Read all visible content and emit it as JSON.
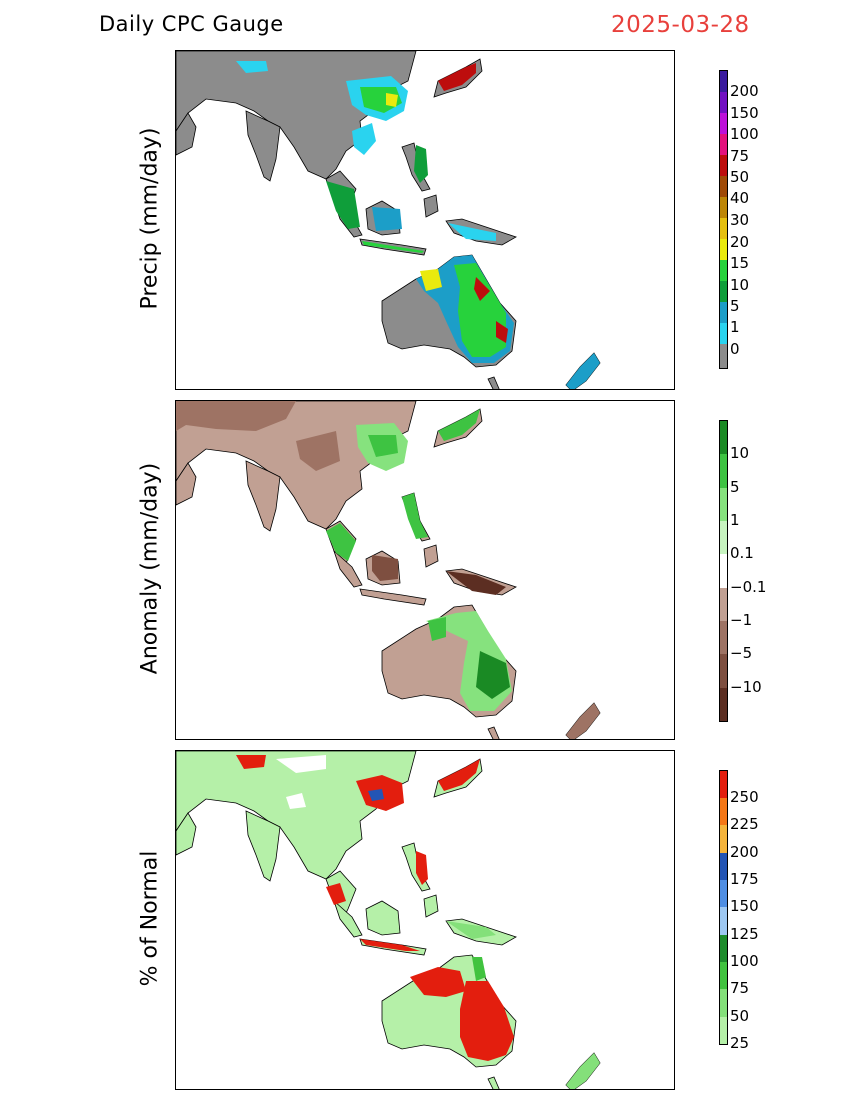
{
  "header": {
    "title": "Daily CPC Gauge",
    "date": "2025-03-28"
  },
  "panels": [
    {
      "id": "precip",
      "ylabel": "Precip (mm/day)",
      "colorbar": {
        "colors": [
          "#8c8c8c",
          "#2ad3ef",
          "#1c9ec8",
          "#0f9e3a",
          "#27d23c",
          "#eaea0e",
          "#e5bf0f",
          "#bd8606",
          "#a04a06",
          "#bd0d0d",
          "#e3117d",
          "#bd11d9",
          "#7210c2",
          "#3a1a9e"
        ],
        "labels": [
          "0",
          "1",
          "5",
          "10",
          "15",
          "20",
          "30",
          "40",
          "50",
          "75",
          "100",
          "150",
          "200"
        ]
      }
    },
    {
      "id": "anomaly",
      "ylabel": "Anomaly (mm/day)",
      "colorbar": {
        "colors": [
          "#5c2e22",
          "#7e4f40",
          "#9e7364",
          "#c1a093",
          "#ffffff",
          "#c7f4c0",
          "#86e27e",
          "#3ec342",
          "#1a8a24"
        ],
        "labels": [
          "−10",
          "−5",
          "−1",
          "−0.1",
          "0.1",
          "1",
          "5",
          "10"
        ]
      }
    },
    {
      "id": "percent",
      "ylabel": "% of Normal",
      "colorbar": {
        "colors": [
          "#b5f0a8",
          "#84e07a",
          "#41c33f",
          "#1e8c2c",
          "#9ec8f2",
          "#4f8ee3",
          "#2355b5",
          "#f5b43b",
          "#f57716",
          "#e31e0e"
        ],
        "labels": [
          "25",
          "50",
          "75",
          "100",
          "125",
          "150",
          "175",
          "200",
          "225",
          "250"
        ]
      }
    }
  ]
}
